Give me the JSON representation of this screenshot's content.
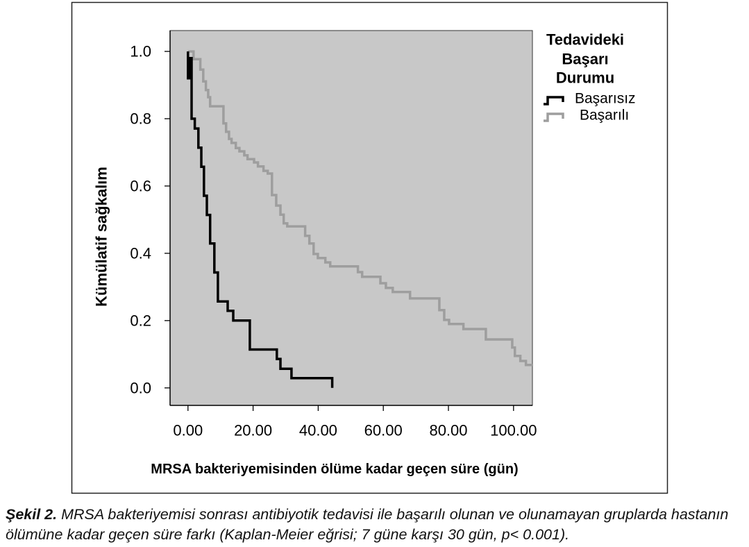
{
  "caption": {
    "label": "Şekil 2.",
    "line1": "MRSA bakteriyemisi sonrası antibiyotik tedavisi ile başarılı olunan ve olunamayan gruplarda hastanın",
    "line2": "ölümüne kadar geçen süre farkı (Kaplan-Meier eğrisi; 7 güne karşı 30 gün, p< 0.001)."
  },
  "chart_data": {
    "type": "line",
    "line_style": "step",
    "xlabel": "MRSA bakteriyemisinden ölüme kadar geçen süre (gün)",
    "ylabel": "Kümülatif sağkalım",
    "xlim": [
      -5.5,
      105.8
    ],
    "ylim": [
      -0.052,
      1.062
    ],
    "x_ticks": [
      {
        "value": 0,
        "label": "0.00"
      },
      {
        "value": 20,
        "label": "20.00"
      },
      {
        "value": 40,
        "label": "40.00"
      },
      {
        "value": 60,
        "label": "60.00"
      },
      {
        "value": 80,
        "label": "80.00"
      },
      {
        "value": 100,
        "label": "100.00"
      }
    ],
    "y_ticks": [
      {
        "value": 0.0,
        "label": "0.0"
      },
      {
        "value": 0.2,
        "label": "0.2"
      },
      {
        "value": 0.4,
        "label": "0.4"
      },
      {
        "value": 0.6,
        "label": "0.6"
      },
      {
        "value": 0.8,
        "label": "0.8"
      },
      {
        "value": 1.0,
        "label": "1.0"
      }
    ],
    "grid": false,
    "plot_background": "#c8c8c8",
    "legend": {
      "title": [
        "Tedavideki",
        "Başarı",
        "Durumu"
      ],
      "placement": "right"
    },
    "series": [
      {
        "name": "Başarısız",
        "color": "#000000",
        "x": [
          0,
          0,
          0.7,
          1.1,
          2.1,
          3.2,
          4.1,
          4.9,
          5.8,
          6.8,
          8.1,
          9.2,
          12.2,
          13.9,
          19.0,
          27.3,
          28.4,
          31.8,
          44.3
        ],
        "y": [
          1.0,
          0.92,
          0.98,
          0.8,
          0.771,
          0.714,
          0.657,
          0.571,
          0.514,
          0.429,
          0.343,
          0.257,
          0.229,
          0.2,
          0.114,
          0.086,
          0.057,
          0.029,
          0.0
        ]
      },
      {
        "name": "Başarılı",
        "color": "#9e9e9e",
        "x": [
          0,
          1.7,
          3.8,
          4.7,
          5.5,
          6.2,
          6.8,
          10.9,
          11.7,
          12.6,
          13.4,
          14.7,
          15.8,
          17.3,
          18.3,
          20.3,
          21.5,
          23.2,
          24.5,
          25.8,
          27.1,
          28.4,
          29.4,
          30.5,
          36.0,
          37.3,
          38.6,
          39.9,
          42.2,
          43.7,
          52.2,
          53.5,
          59.1,
          60.8,
          62.9,
          68.2,
          77.2,
          78.7,
          80.2,
          84.6,
          91.5,
          99.6,
          100.4,
          102.1,
          103.8,
          105.8
        ],
        "y": [
          1.0,
          0.977,
          0.946,
          0.911,
          0.885,
          0.864,
          0.837,
          0.786,
          0.761,
          0.74,
          0.728,
          0.713,
          0.703,
          0.691,
          0.68,
          0.67,
          0.658,
          0.645,
          0.637,
          0.573,
          0.542,
          0.515,
          0.489,
          0.48,
          0.452,
          0.429,
          0.398,
          0.386,
          0.373,
          0.361,
          0.344,
          0.33,
          0.311,
          0.297,
          0.285,
          0.266,
          0.231,
          0.202,
          0.19,
          0.175,
          0.144,
          0.12,
          0.095,
          0.08,
          0.068,
          0.068
        ]
      }
    ]
  }
}
